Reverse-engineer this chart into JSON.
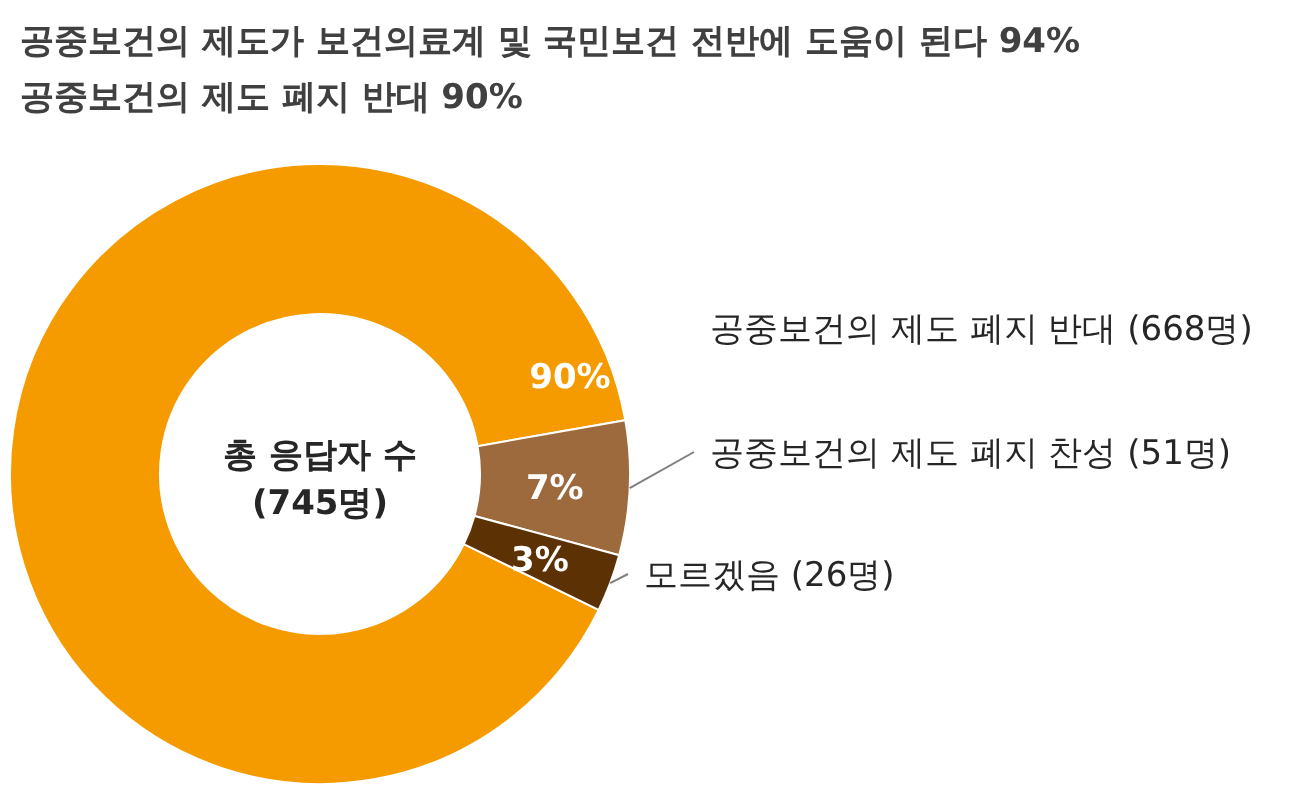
{
  "chart_data": {
    "type": "donut",
    "title": "공중보건의 제도가 보건의료계 및 국민보건 전반에 도움이 된다 94%",
    "subtitle": "공중보건의 제도 폐지 반대 90%",
    "categories": [
      "공중보건의 제도 폐지 반대 (668명)",
      "공중보건의 제도 폐지 찬성 (51명)",
      "모르겠음 (26명)"
    ],
    "values": [
      90,
      7,
      3
    ],
    "colors": [
      "#f59b00",
      "#9c6a3c",
      "#5c3205"
    ],
    "value_labels": [
      "90%",
      "7%",
      "3%"
    ],
    "annotations": [
      "총 응답자 수 (745명)"
    ]
  }
}
